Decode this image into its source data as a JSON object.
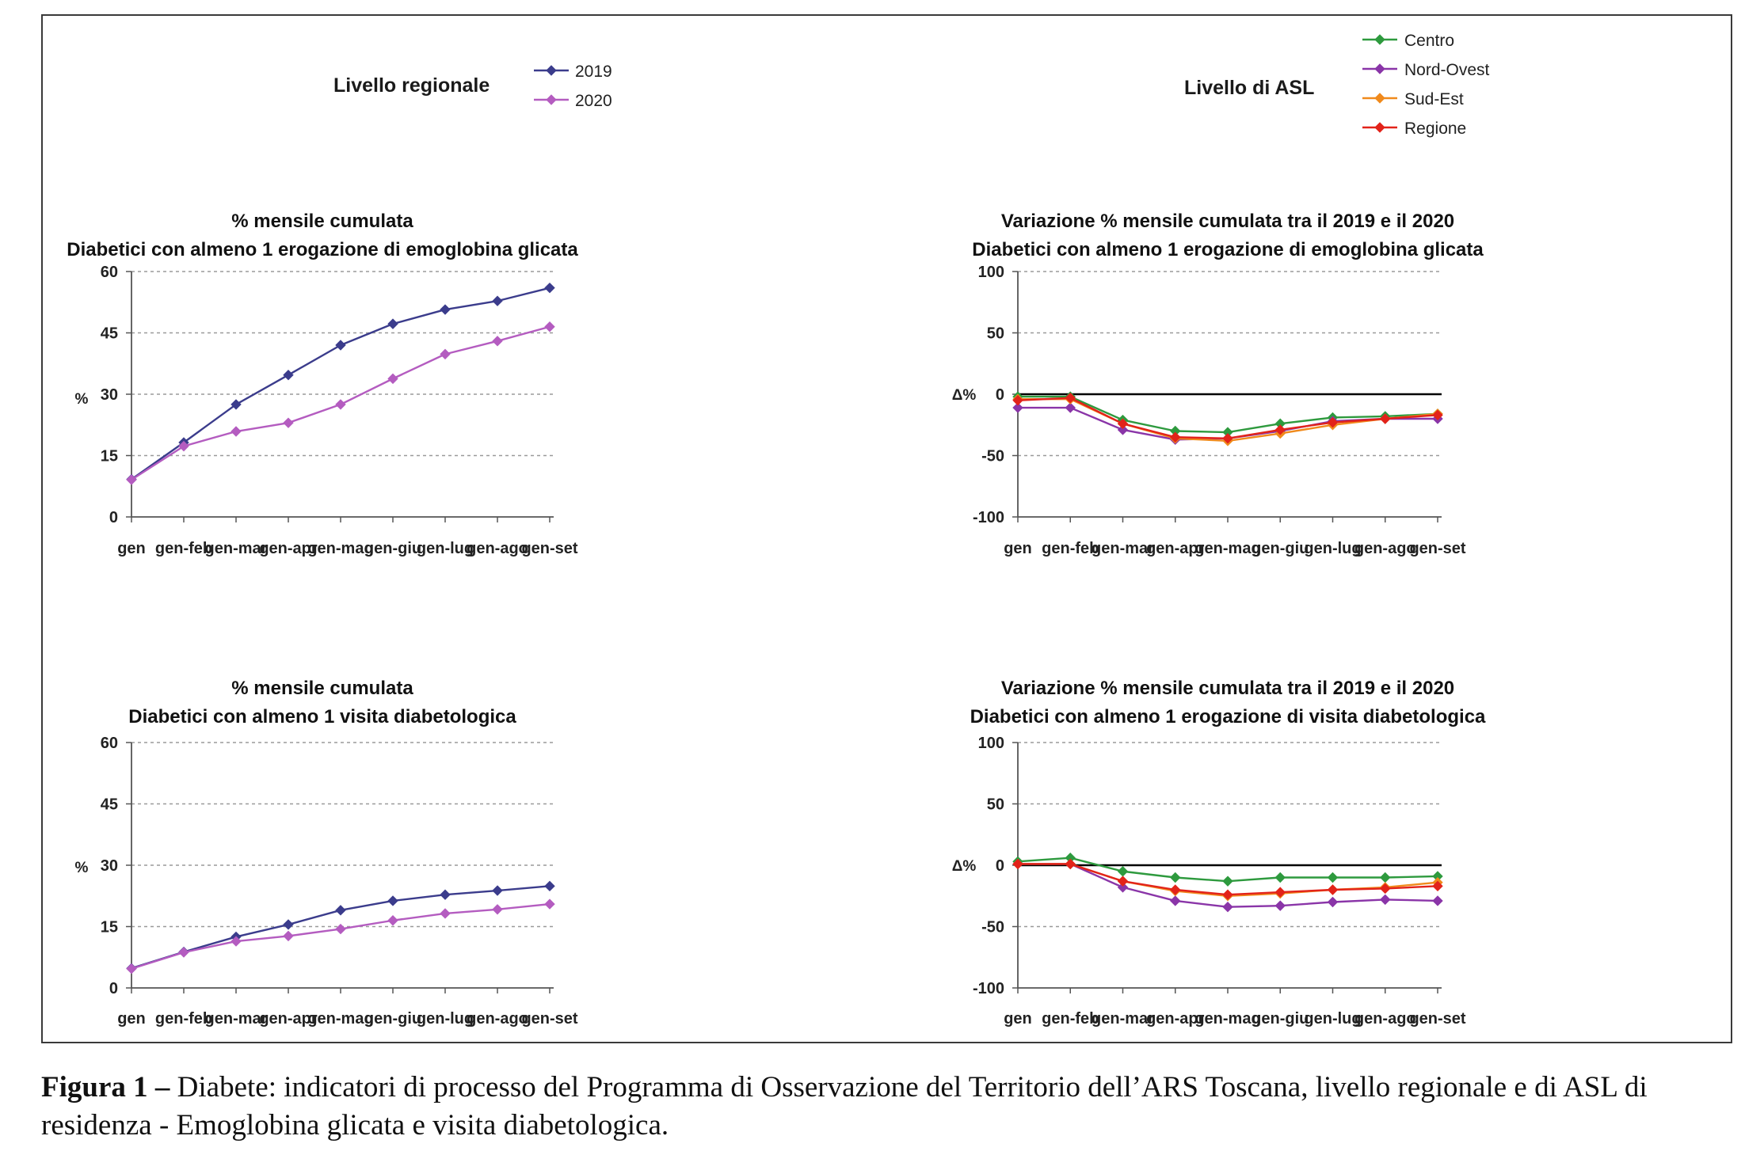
{
  "headers": {
    "left": "Livello regionale",
    "right": "Livello di ASL"
  },
  "legends": {
    "regional": [
      {
        "name": "2019",
        "color": "#3b3c8c"
      },
      {
        "name": "2020",
        "color": "#b45cc0"
      }
    ],
    "asl": [
      {
        "name": "Centro",
        "color": "#2e9a3e"
      },
      {
        "name": "Nord-Ovest",
        "color": "#8a35a8"
      },
      {
        "name": "Sud-Est",
        "color": "#f08a1c"
      },
      {
        "name": "Regione",
        "color": "#e2231a"
      }
    ]
  },
  "caption": {
    "label": "Figura 1 –",
    "text": " Diabete: indicatori di processo del Programma di Osservazione del Territorio dell’ARS Toscana, livello regionale e di ASL di residenza - Emoglobina glicata e visita diabetologica."
  },
  "chart_data": [
    {
      "type": "line",
      "title": [
        "% mensile cumulata",
        "Diabetici con almeno 1 erogazione di emoglobina glicata"
      ],
      "ylabel": "%",
      "ylim": [
        0,
        60
      ],
      "yticks": [
        0,
        15,
        30,
        45,
        60
      ],
      "grid": true,
      "categories": [
        "gen",
        "gen-feb",
        "gen-mar",
        "gen-apr",
        "gen-mag",
        "gen-giu",
        "gen-lug",
        "gen-ago",
        "gen-set"
      ],
      "series": [
        {
          "name": "2019",
          "color": "#3b3c8c",
          "values": [
            9.2,
            18.2,
            27.5,
            34.7,
            42.0,
            47.2,
            50.7,
            52.8,
            56.0
          ]
        },
        {
          "name": "2020",
          "color": "#b45cc0",
          "values": [
            9.1,
            17.3,
            20.9,
            23.0,
            27.5,
            33.8,
            39.8,
            43.0,
            46.5
          ]
        }
      ]
    },
    {
      "type": "line",
      "title": [
        "Variazione % mensile cumulata tra il 2019 e il 2020",
        "Diabetici con almeno 1 erogazione di emoglobina glicata"
      ],
      "ylabel": "Δ%",
      "ylim": [
        -100,
        100
      ],
      "yticks": [
        -100,
        -50,
        0,
        50,
        100
      ],
      "grid": true,
      "zero_line": true,
      "categories": [
        "gen",
        "gen-feb",
        "gen-mar",
        "gen-apr",
        "gen-mag",
        "gen-giu",
        "gen-lug",
        "gen-ago",
        "gen-set"
      ],
      "series": [
        {
          "name": "Centro",
          "color": "#2e9a3e",
          "values": [
            -2,
            -2,
            -21,
            -30,
            -31,
            -24,
            -19,
            -18,
            -16
          ]
        },
        {
          "name": "Nord-Ovest",
          "color": "#8a35a8",
          "values": [
            -11,
            -11,
            -29,
            -37,
            -36,
            -30,
            -22,
            -20,
            -20
          ]
        },
        {
          "name": "Sud-Est",
          "color": "#f08a1c",
          "values": [
            -4,
            -4,
            -24,
            -36,
            -38,
            -32,
            -25,
            -20,
            -16
          ]
        },
        {
          "name": "Regione",
          "color": "#e2231a",
          "values": [
            -5,
            -3,
            -24,
            -35,
            -36,
            -29,
            -23,
            -20,
            -17
          ]
        }
      ]
    },
    {
      "type": "line",
      "title": [
        "% mensile cumulata",
        "Diabetici con almeno 1 visita diabetologica"
      ],
      "ylabel": "%",
      "ylim": [
        0,
        60
      ],
      "yticks": [
        0,
        15,
        30,
        45,
        60
      ],
      "grid": true,
      "categories": [
        "gen",
        "gen-feb",
        "gen-mar",
        "gen-apr",
        "gen-mag",
        "gen-giu",
        "gen-lug",
        "gen-ago",
        "gen-set"
      ],
      "series": [
        {
          "name": "2019",
          "color": "#3b3c8c",
          "values": [
            4.8,
            8.8,
            12.5,
            15.5,
            19.0,
            21.3,
            22.8,
            23.8,
            24.9
          ]
        },
        {
          "name": "2020",
          "color": "#b45cc0",
          "values": [
            4.7,
            8.7,
            11.4,
            12.7,
            14.4,
            16.5,
            18.2,
            19.2,
            20.5
          ]
        }
      ]
    },
    {
      "type": "line",
      "title": [
        "Variazione % mensile cumulata tra il 2019 e il 2020",
        "Diabetici con almeno 1 erogazione di visita diabetologica"
      ],
      "ylabel": "Δ%",
      "ylim": [
        -100,
        100
      ],
      "yticks": [
        -100,
        -50,
        0,
        50,
        100
      ],
      "grid": true,
      "zero_line": true,
      "categories": [
        "gen",
        "gen-feb",
        "gen-mar",
        "gen-apr",
        "gen-mag",
        "gen-giu",
        "gen-lug",
        "gen-ago",
        "gen-set"
      ],
      "series": [
        {
          "name": "Centro",
          "color": "#2e9a3e",
          "values": [
            3,
            6,
            -5,
            -10,
            -13,
            -10,
            -10,
            -10,
            -9
          ]
        },
        {
          "name": "Nord-Ovest",
          "color": "#8a35a8",
          "values": [
            1,
            1,
            -18,
            -29,
            -34,
            -33,
            -30,
            -28,
            -29
          ]
        },
        {
          "name": "Sud-Est",
          "color": "#f08a1c",
          "values": [
            1,
            1,
            -13,
            -21,
            -25,
            -23,
            -20,
            -18,
            -14
          ]
        },
        {
          "name": "Regione",
          "color": "#e2231a",
          "values": [
            1,
            1,
            -13,
            -20,
            -24,
            -22,
            -20,
            -19,
            -17
          ]
        }
      ]
    }
  ]
}
